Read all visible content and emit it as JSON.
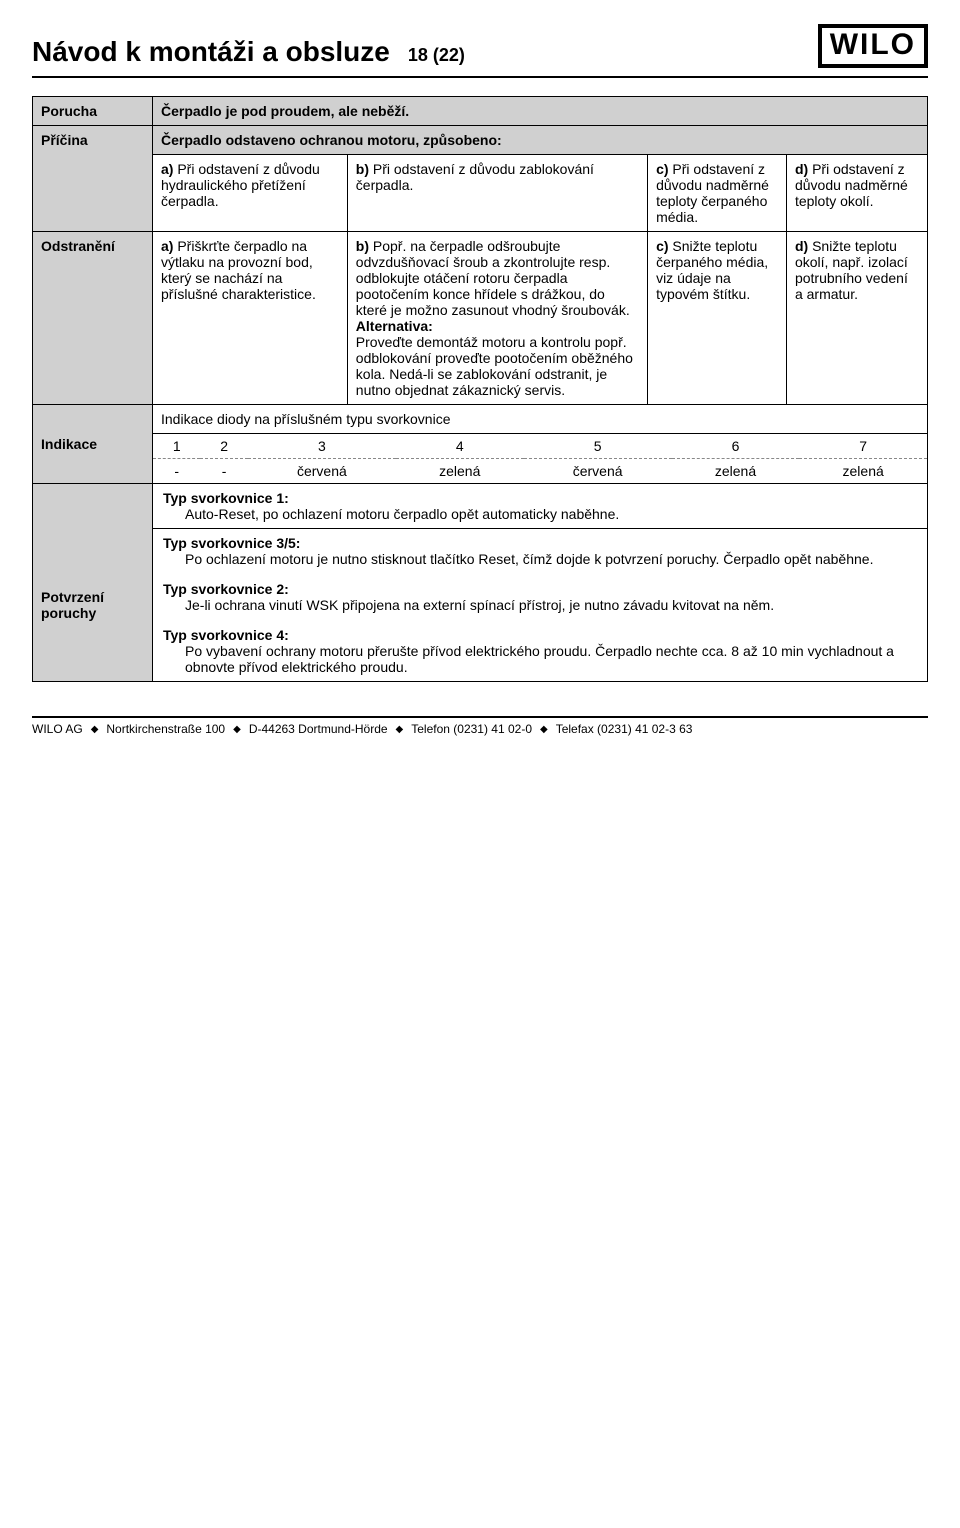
{
  "header": {
    "title": "Návod k montáži a obsluze",
    "page": "18 (22)",
    "logo": "WILO"
  },
  "table": {
    "porucha_label": "Porucha",
    "porucha_title": "Čerpadlo je pod proudem, ale neběží.",
    "pricina_label": "Příčina",
    "pricina_subtitle": "Čerpadlo odstaveno ochranou motoru, způsobeno:",
    "pricina_cells": {
      "a_bold": "a)",
      "a_text": " Při odstavení z důvodu hydraulického přetížení čerpadla.",
      "b_bold": "b)",
      "b_text": " Při odstavení z důvodu zablokování čerpadla.",
      "c_bold": "c)",
      "c_text": " Při odstavení z důvodu nadměrné teploty čerpaného média.",
      "d_bold": "d)",
      "d_text": " Při odstavení z důvodu nadměrné teploty okolí."
    },
    "odstraneni_label": "Odstranění",
    "odstraneni_cells": {
      "a_bold": "a)",
      "a_text": " Přiškrťte čerpadlo na výtlaku na provozní bod, který se nachází na příslušné charakteristice.",
      "b_bold": "b)",
      "b_text1": " Popř. na čerpadle odšroubujte odvzdušňovací šroub a zkontrolujte resp. odblokujte otáčení rotoru čerpadla pootočením konce hřídele s drážkou, do které je možno zasunout vhodný šroubovák.",
      "b_alt_label": "Alternativa:",
      "b_text2": "Proveďte demontáž motoru a kontrolu popř. odblokování proveďte pootočením oběžného kola. Nedá-li se zablokování odstranit, je nutno objednat zákaznický servis.",
      "c_bold": "c)",
      "c_text": " Snižte teplotu čerpaného média, viz údaje na typovém štítku.",
      "d_bold": "d)",
      "d_text": " Snižte teplotu okolí, např. izolací potrubního vedení a armatur."
    },
    "indikace_label": "Indikace",
    "indikace_title": "Indikace diody na příslušném typu svorkovnice",
    "indikace_nums": [
      "1",
      "2",
      "3",
      "4",
      "5",
      "6",
      "7"
    ],
    "indikace_colors": [
      "-",
      "-",
      "červená",
      "zelená",
      "červená",
      "zelená",
      "zelená"
    ],
    "potvrzeni_label": "Potvrzení poruchy",
    "conf": [
      {
        "label": "Typ svorkovnice 1:",
        "text": "Auto-Reset, po ochlazení motoru čerpadlo opět automaticky naběhne."
      },
      {
        "label": "Typ svorkovnice 3/5:",
        "text": "Po ochlazení motoru je nutno stisknout tlačítko Reset, čímž dojde k potvrzení poruchy. Čerpadlo opět naběhne."
      },
      {
        "label": "Typ svorkovnice 2:",
        "text": "Je-li ochrana vinutí WSK připojena na externí spínací přístroj, je nutno závadu kvitovat na něm."
      },
      {
        "label": "Typ svorkovnice 4:",
        "text": "Po vybavení ochrany motoru přerušte přívod elektrického proudu. Čerpadlo nechte cca. 8 až 10 min vychladnout a obnovte přívod elektrického proudu."
      }
    ]
  },
  "footer": {
    "company": "WILO AG",
    "street": "Nortkirchenstraße 100",
    "city": "D-44263 Dortmund-Hörde",
    "phone": "Telefon (0231) 41 02-0",
    "fax": "Telefax (0231) 41 02-3 63",
    "sep": "◆"
  }
}
